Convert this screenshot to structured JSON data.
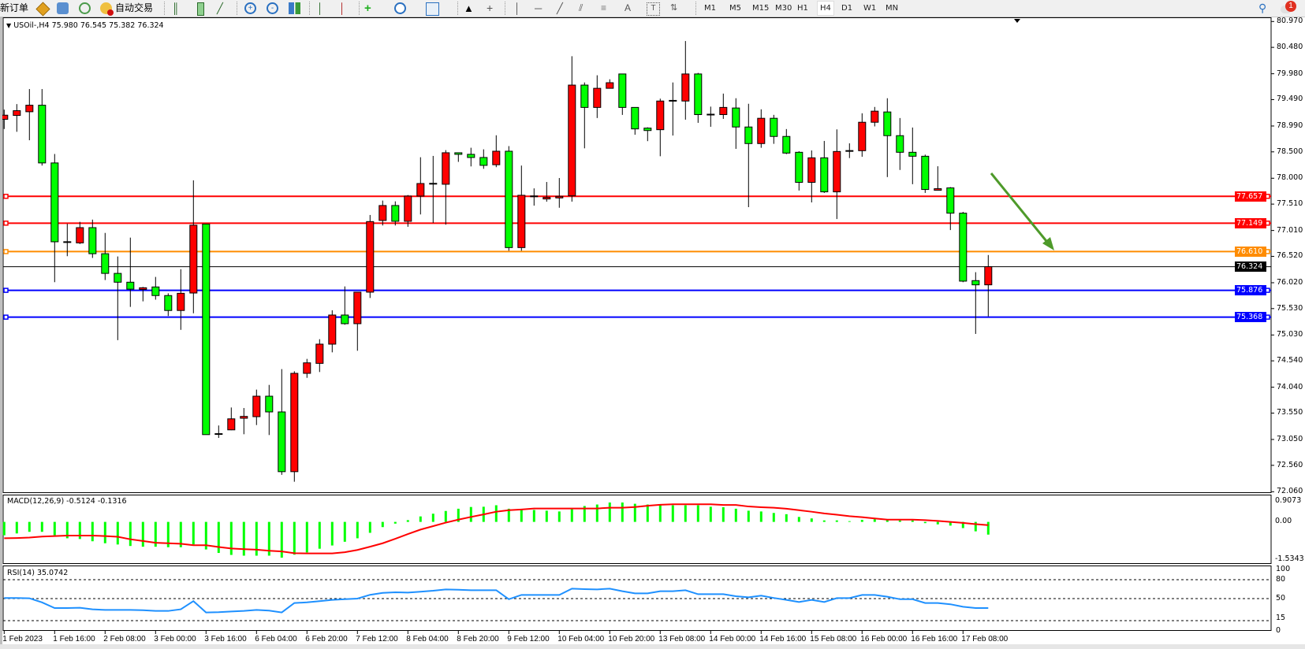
{
  "toolbar": {
    "new_order": "新订单",
    "auto_trading": "自动交易",
    "timeframes": [
      "M1",
      "M5",
      "M15",
      "M30",
      "H1",
      "H4",
      "D1",
      "W1",
      "MN"
    ],
    "active_timeframe": "H4",
    "text_tool": "A",
    "notification_count": "1"
  },
  "chart": {
    "symbol_info": "USOil-,H4  75.980 76.545 75.382 76.324",
    "colors": {
      "up": "#ff0000",
      "down": "#00ff00",
      "arrow": "#4e9a2a"
    },
    "price_axis": [
      "80.970",
      "80.480",
      "79.980",
      "79.490",
      "78.990",
      "78.500",
      "78.000",
      "77.510",
      "77.010",
      "76.520",
      "76.020",
      "75.530",
      "75.030",
      "74.540",
      "74.040",
      "73.550",
      "73.050",
      "72.560",
      "72.060"
    ],
    "levels": [
      {
        "price": "77.657",
        "color": "#ff0000"
      },
      {
        "price": "77.149",
        "color": "#ff0000"
      },
      {
        "price": "76.610",
        "color": "#ff8c00"
      },
      {
        "price": "76.324",
        "color": "#000000"
      },
      {
        "price": "75.876",
        "color": "#0000ff"
      },
      {
        "price": "75.368",
        "color": "#0000ff"
      }
    ],
    "time_axis": [
      "1 Feb 2023",
      "1 Feb 16:00",
      "2 Feb 08:00",
      "3 Feb 00:00",
      "3 Feb 16:00",
      "6 Feb 04:00",
      "6 Feb 20:00",
      "7 Feb 12:00",
      "8 Feb 04:00",
      "8 Feb 20:00",
      "9 Feb 12:00",
      "10 Feb 04:00",
      "10 Feb 20:00",
      "13 Feb 08:00",
      "14 Feb 00:00",
      "14 Feb 16:00",
      "15 Feb 08:00",
      "16 Feb 00:00",
      "16 Feb 16:00",
      "17 Feb 08:00"
    ]
  },
  "macd": {
    "label": "MACD(12,26,9) -0.5124 -0.1316",
    "axis": [
      "0.9073",
      "0.00",
      "-1.5343"
    ]
  },
  "rsi": {
    "label": "RSI(14) 35.0742",
    "axis": [
      "100",
      "80",
      "50",
      "15",
      "0"
    ]
  },
  "chart_data": {
    "type": "candlestick",
    "ylim": [
      72.06,
      80.97
    ],
    "ohlc": [
      [
        79.117,
        79.3,
        78.933,
        79.195
      ],
      [
        79.19,
        79.405,
        78.88,
        79.28
      ],
      [
        79.26,
        79.69,
        78.72,
        79.384
      ],
      [
        79.384,
        79.69,
        78.24,
        78.29
      ],
      [
        78.29,
        78.46,
        76.03,
        76.796
      ],
      [
        76.79,
        77.137,
        76.523,
        76.79
      ],
      [
        76.775,
        77.174,
        76.754,
        77.064
      ],
      [
        77.064,
        77.216,
        76.49,
        76.57
      ],
      [
        76.57,
        76.964,
        76.071,
        76.197
      ],
      [
        76.197,
        76.518,
        74.932,
        76.03
      ],
      [
        76.03,
        76.875,
        75.562,
        75.898
      ],
      [
        75.893,
        75.94,
        75.667,
        75.925
      ],
      [
        75.94,
        76.13,
        75.699,
        75.777
      ],
      [
        75.777,
        75.82,
        75.39,
        75.494
      ],
      [
        75.494,
        76.276,
        75.127,
        75.82
      ],
      [
        75.825,
        77.96,
        75.442,
        77.11
      ],
      [
        77.132,
        77.132,
        73.14,
        73.142
      ],
      [
        73.153,
        73.315,
        73.079,
        73.153
      ],
      [
        73.232,
        73.656,
        73.226,
        73.441
      ],
      [
        73.452,
        73.646,
        73.149,
        73.487
      ],
      [
        73.482,
        73.995,
        73.323,
        73.87
      ],
      [
        73.87,
        74.084,
        73.134,
        73.572
      ],
      [
        73.572,
        74.383,
        72.38,
        72.44
      ],
      [
        72.44,
        74.343,
        72.25,
        74.303
      ],
      [
        74.303,
        74.577,
        74.218,
        74.502
      ],
      [
        74.492,
        74.95,
        74.328,
        74.856
      ],
      [
        74.856,
        75.498,
        74.701,
        75.408
      ],
      [
        75.408,
        75.95,
        75.224,
        75.244
      ],
      [
        75.244,
        75.841,
        74.731,
        75.841
      ],
      [
        75.841,
        77.304,
        75.731,
        77.179
      ],
      [
        77.2,
        77.577,
        77.105,
        77.483
      ],
      [
        77.483,
        77.562,
        77.105,
        77.184
      ],
      [
        77.184,
        77.682,
        77.08,
        77.662
      ],
      [
        77.662,
        78.398,
        77.314,
        77.9
      ],
      [
        77.896,
        78.423,
        77.154,
        77.896
      ],
      [
        77.886,
        78.533,
        77.12,
        78.483
      ],
      [
        78.483,
        78.483,
        78.31,
        78.453
      ],
      [
        78.453,
        78.578,
        78.224,
        78.393
      ],
      [
        78.393,
        78.548,
        78.179,
        78.244
      ],
      [
        78.256,
        78.814,
        78.21,
        78.512
      ],
      [
        78.512,
        78.608,
        76.626,
        76.686
      ],
      [
        76.686,
        78.24,
        76.626,
        77.677
      ],
      [
        77.657,
        77.808,
        77.481,
        77.657
      ],
      [
        77.627,
        77.929,
        77.556,
        77.637
      ],
      [
        77.627,
        78.004,
        77.441,
        77.657
      ],
      [
        77.667,
        80.313,
        77.556,
        79.765
      ],
      [
        79.765,
        79.815,
        78.567,
        79.342
      ],
      [
        79.342,
        79.951,
        79.141,
        79.704
      ],
      [
        79.704,
        79.875,
        79.704,
        79.81
      ],
      [
        79.976,
        79.976,
        79.2,
        79.342
      ],
      [
        79.342,
        79.342,
        78.824,
        78.935
      ],
      [
        78.95,
        78.965,
        78.703,
        78.904
      ],
      [
        78.92,
        79.508,
        78.417,
        79.463
      ],
      [
        79.468,
        79.815,
        78.809,
        79.468
      ],
      [
        79.463,
        80.6,
        79.11,
        79.976
      ],
      [
        79.976,
        79.996,
        79.05,
        79.206
      ],
      [
        79.206,
        79.357,
        78.975,
        79.206
      ],
      [
        79.206,
        79.604,
        79.125,
        79.342
      ],
      [
        79.331,
        79.516,
        78.557,
        78.971
      ],
      [
        78.971,
        79.411,
        77.452,
        78.657
      ],
      [
        78.657,
        79.306,
        78.577,
        79.136
      ],
      [
        79.136,
        79.201,
        78.652,
        78.792
      ],
      [
        78.792,
        78.932,
        78.457,
        78.477
      ],
      [
        78.492,
        78.512,
        77.767,
        77.922
      ],
      [
        77.922,
        78.527,
        77.542,
        78.387
      ],
      [
        78.387,
        78.707,
        77.722,
        77.742
      ],
      [
        77.742,
        78.926,
        77.227,
        78.507
      ],
      [
        78.517,
        78.662,
        78.382,
        78.517
      ],
      [
        78.522,
        79.231,
        78.407,
        79.061
      ],
      [
        79.061,
        79.351,
        78.982,
        79.271
      ],
      [
        79.256,
        79.516,
        78.022,
        78.807
      ],
      [
        78.807,
        79.141,
        78.157,
        78.492
      ],
      [
        78.492,
        78.961,
        77.887,
        78.417
      ],
      [
        78.417,
        78.447,
        77.722,
        77.787
      ],
      [
        77.787,
        78.227,
        77.772,
        77.802
      ],
      [
        77.817,
        77.832,
        77.018,
        77.338
      ],
      [
        77.338,
        77.363,
        76.03,
        76.05
      ],
      [
        76.06,
        76.22,
        75.05,
        75.98
      ],
      [
        75.98,
        76.545,
        75.382,
        76.324
      ]
    ],
    "macd_ylim": [
      -1.5343,
      0.9073
    ],
    "macd_main": [
      -0.54,
      -0.465,
      -0.4,
      -0.4,
      -0.54,
      -0.66,
      -0.69,
      -0.78,
      -0.86,
      -0.91,
      -0.97,
      -1.0,
      -1.0,
      -1.02,
      -1.02,
      -0.91,
      -1.11,
      -1.25,
      -1.33,
      -1.36,
      -1.36,
      -1.36,
      -1.44,
      -1.32,
      -1.23,
      -1.08,
      -0.95,
      -0.8,
      -0.66,
      -0.44,
      -0.21,
      -0.07,
      0.07,
      0.22,
      0.33,
      0.44,
      0.53,
      0.6,
      0.61,
      0.67,
      0.53,
      0.48,
      0.48,
      0.45,
      0.42,
      0.51,
      0.64,
      0.7,
      0.78,
      0.78,
      0.73,
      0.7,
      0.67,
      0.67,
      0.67,
      0.67,
      0.61,
      0.59,
      0.53,
      0.45,
      0.42,
      0.36,
      0.31,
      0.2,
      0.14,
      0.06,
      0.06,
      0.03,
      0.08,
      0.11,
      0.08,
      0.06,
      0.06,
      -0.05,
      -0.1,
      -0.15,
      -0.25,
      -0.38,
      -0.5124
    ],
    "macd_signal": [
      -0.66,
      -0.65,
      -0.63,
      -0.59,
      -0.57,
      -0.55,
      -0.55,
      -0.55,
      -0.57,
      -0.6,
      -0.7,
      -0.77,
      -0.84,
      -0.86,
      -0.88,
      -0.94,
      -0.94,
      -1.01,
      -1.07,
      -1.1,
      -1.12,
      -1.16,
      -1.19,
      -1.26,
      -1.27,
      -1.27,
      -1.27,
      -1.22,
      -1.13,
      -1.0,
      -0.86,
      -0.68,
      -0.49,
      -0.31,
      -0.17,
      -0.03,
      0.09,
      0.2,
      0.3,
      0.41,
      0.47,
      0.5,
      0.54,
      0.54,
      0.54,
      0.54,
      0.54,
      0.54,
      0.57,
      0.57,
      0.6,
      0.65,
      0.69,
      0.71,
      0.71,
      0.71,
      0.71,
      0.68,
      0.68,
      0.62,
      0.59,
      0.57,
      0.53,
      0.47,
      0.41,
      0.34,
      0.29,
      0.23,
      0.19,
      0.14,
      0.09,
      0.09,
      0.09,
      0.07,
      0.04,
      0.0,
      -0.04,
      -0.09,
      -0.1316
    ],
    "rsi_levels": [
      80,
      50,
      15
    ],
    "rsi": [
      51,
      51,
      50.5,
      44,
      35,
      35,
      35.4,
      33,
      32,
      32,
      32,
      31.5,
      30.4,
      30.4,
      33,
      46,
      28,
      28.5,
      29.5,
      30.5,
      32,
      31,
      28,
      43,
      44,
      46,
      48,
      49,
      50,
      56,
      59,
      60,
      59.6,
      61,
      62.5,
      64.6,
      64,
      63.3,
      63.3,
      63.3,
      49,
      55.8,
      55.8,
      55.8,
      55.8,
      65.8,
      65,
      64.6,
      65.8,
      61.7,
      58.3,
      58.3,
      61.7,
      61.7,
      63.3,
      57,
      57,
      57,
      53.8,
      52,
      54.6,
      51,
      48,
      44.6,
      48,
      44.6,
      50.8,
      50.8,
      55.8,
      55.8,
      53,
      49,
      49,
      43,
      43,
      41,
      37,
      35,
      35.0742
    ]
  }
}
